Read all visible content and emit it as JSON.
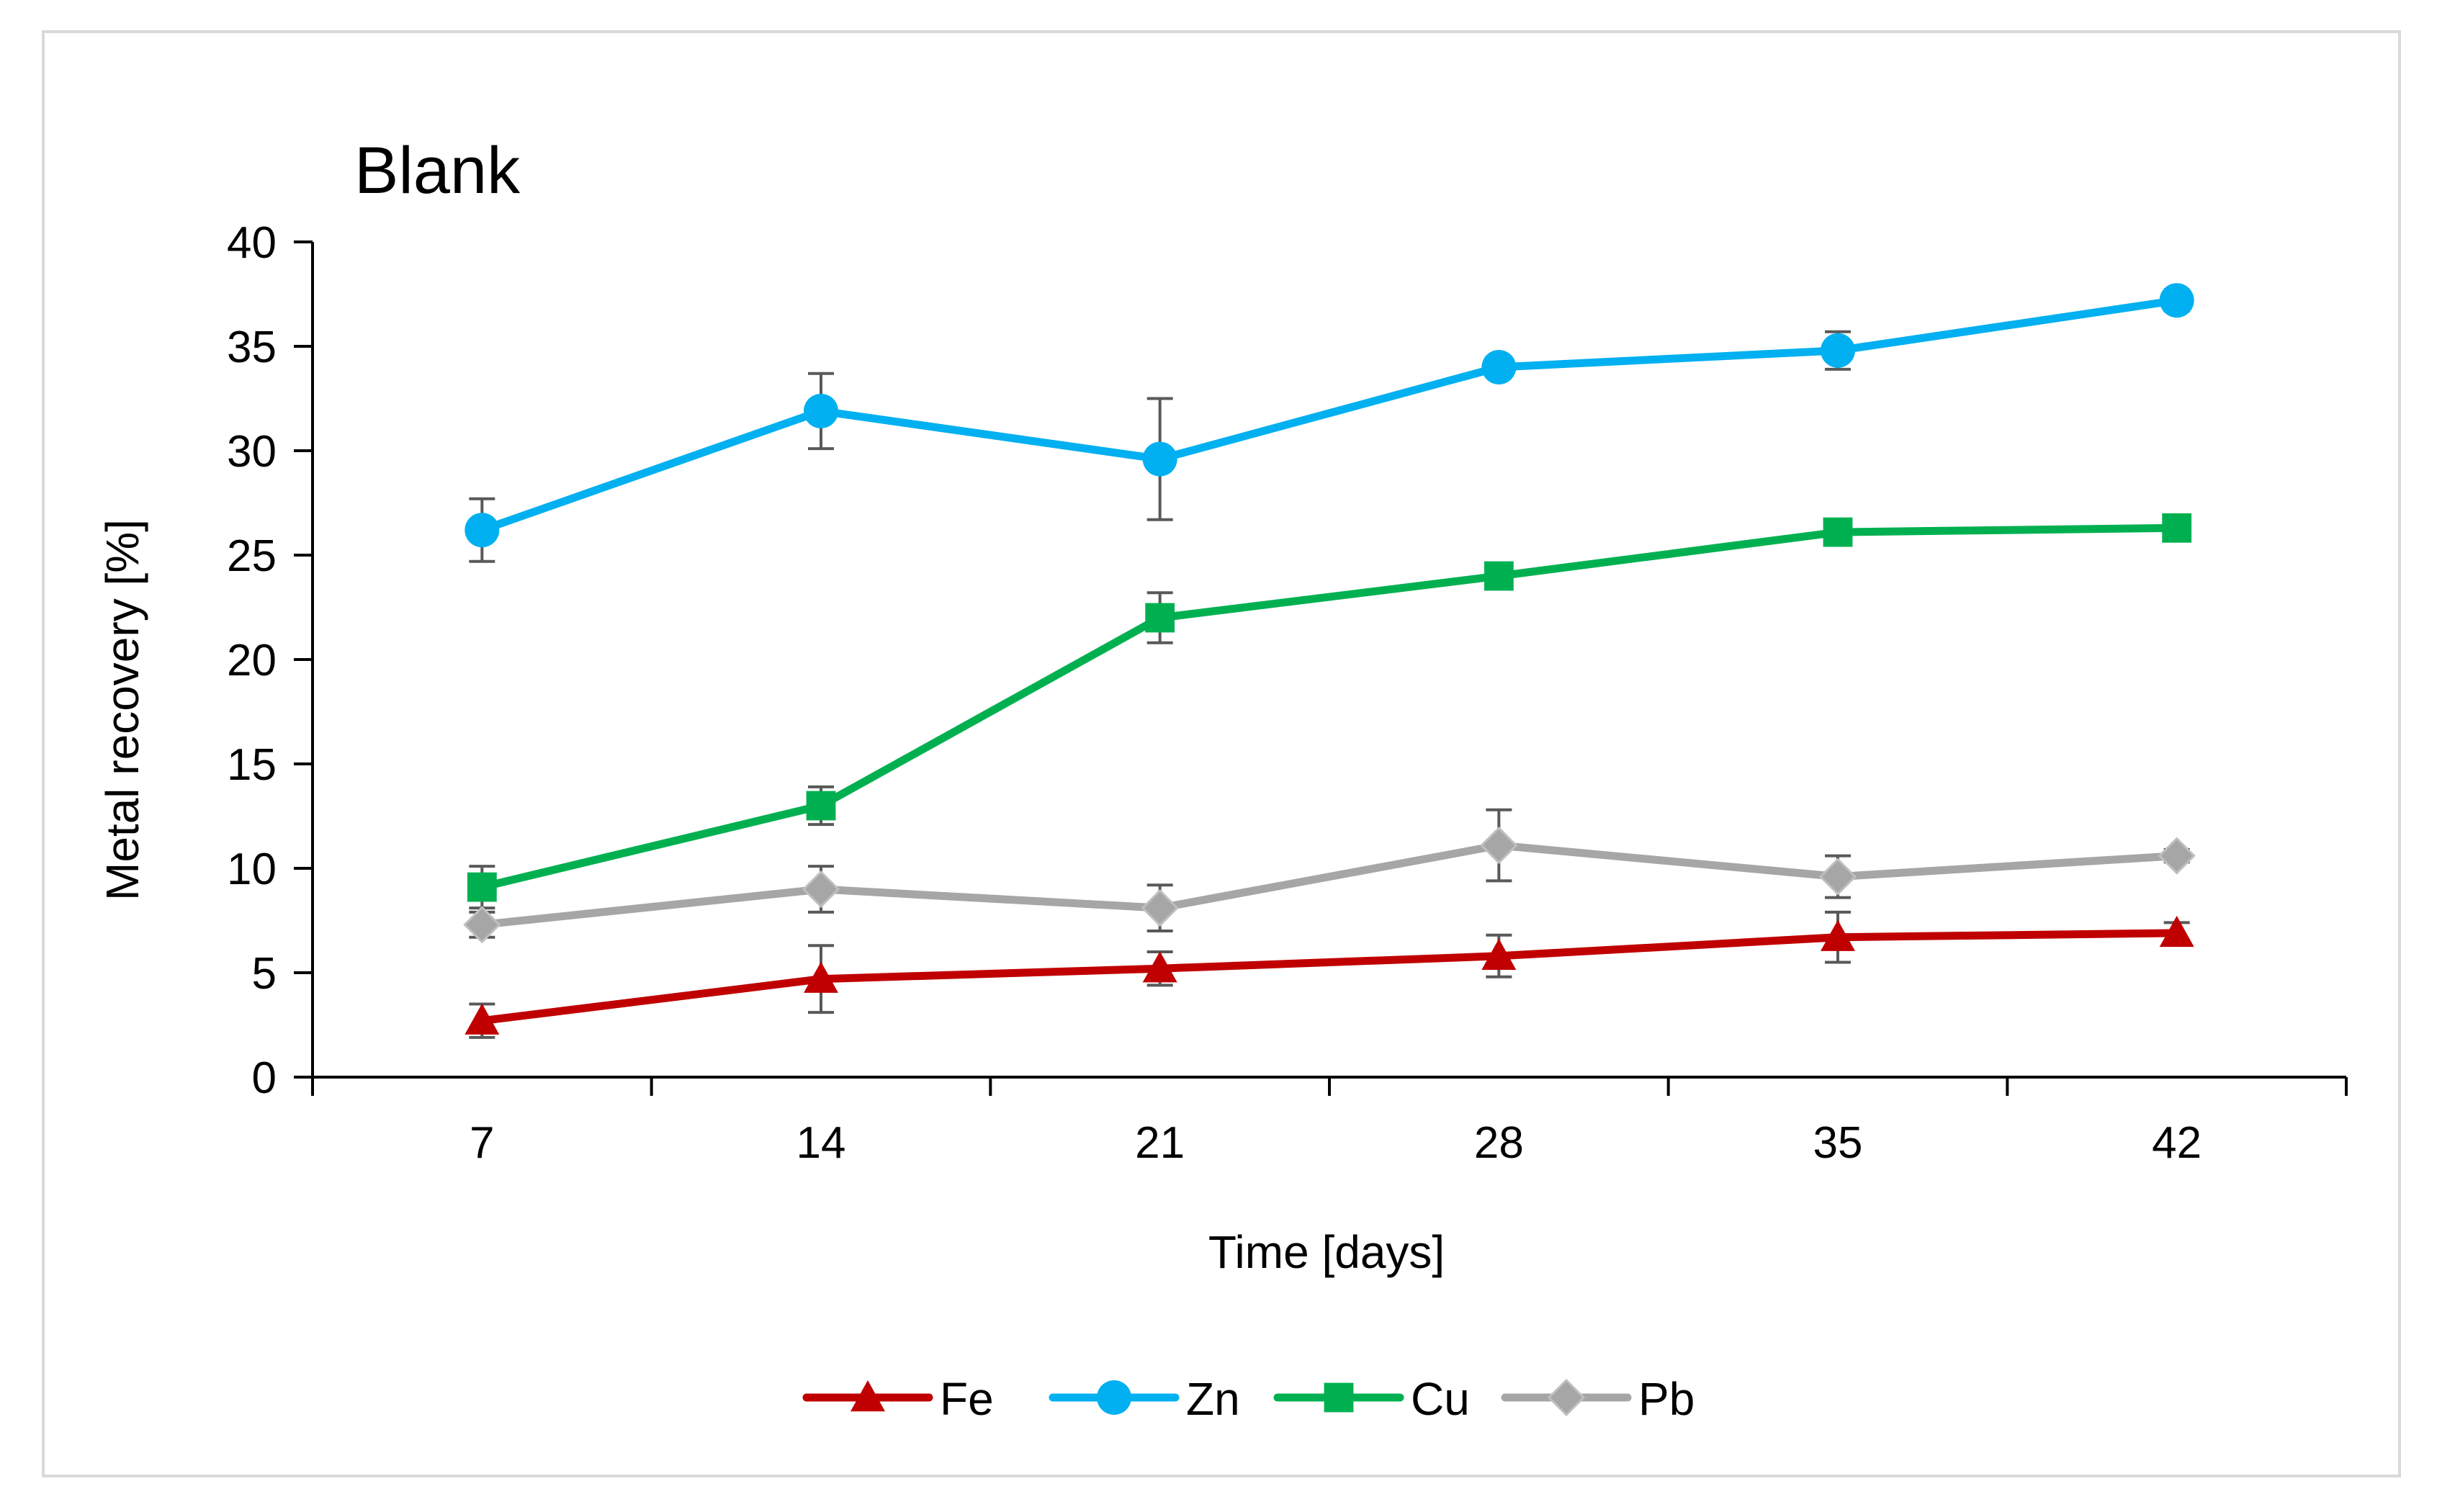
{
  "chart_data": {
    "type": "line",
    "title": "Blank",
    "xlabel": "Time [days]",
    "ylabel": "Metal recovery [%]",
    "categories": [
      "7",
      "14",
      "21",
      "28",
      "35",
      "42"
    ],
    "ylim": [
      0,
      40
    ],
    "yticks": [
      "0",
      "5",
      "10",
      "15",
      "20",
      "25",
      "30",
      "35",
      "40"
    ],
    "grid": false,
    "legend_position": "bottom-center",
    "series": [
      {
        "name": "Fe",
        "color": "#c00000",
        "marker": "triangle",
        "values": [
          2.7,
          4.7,
          5.2,
          5.8,
          6.7,
          6.9
        ],
        "errors": [
          0.8,
          1.6,
          0.8,
          1.0,
          1.2,
          0.5
        ]
      },
      {
        "name": "Zn",
        "color": "#00b0f0",
        "marker": "circle",
        "values": [
          26.2,
          31.9,
          29.6,
          34.0,
          34.8,
          37.2
        ],
        "errors": [
          1.5,
          1.8,
          2.9,
          0.3,
          0.9,
          0.5
        ]
      },
      {
        "name": "Cu",
        "color": "#00b050",
        "marker": "square",
        "values": [
          9.1,
          13.0,
          22.0,
          24.0,
          26.1,
          26.3
        ],
        "errors": [
          1.0,
          0.9,
          1.2,
          0.6,
          0.4,
          0.3
        ]
      },
      {
        "name": "Pb",
        "color": "#a6a6a6",
        "marker": "diamond",
        "values": [
          7.3,
          9.0,
          8.1,
          11.1,
          9.6,
          10.6
        ],
        "errors": [
          0.6,
          1.1,
          1.1,
          1.7,
          1.0,
          0.3
        ]
      }
    ]
  }
}
